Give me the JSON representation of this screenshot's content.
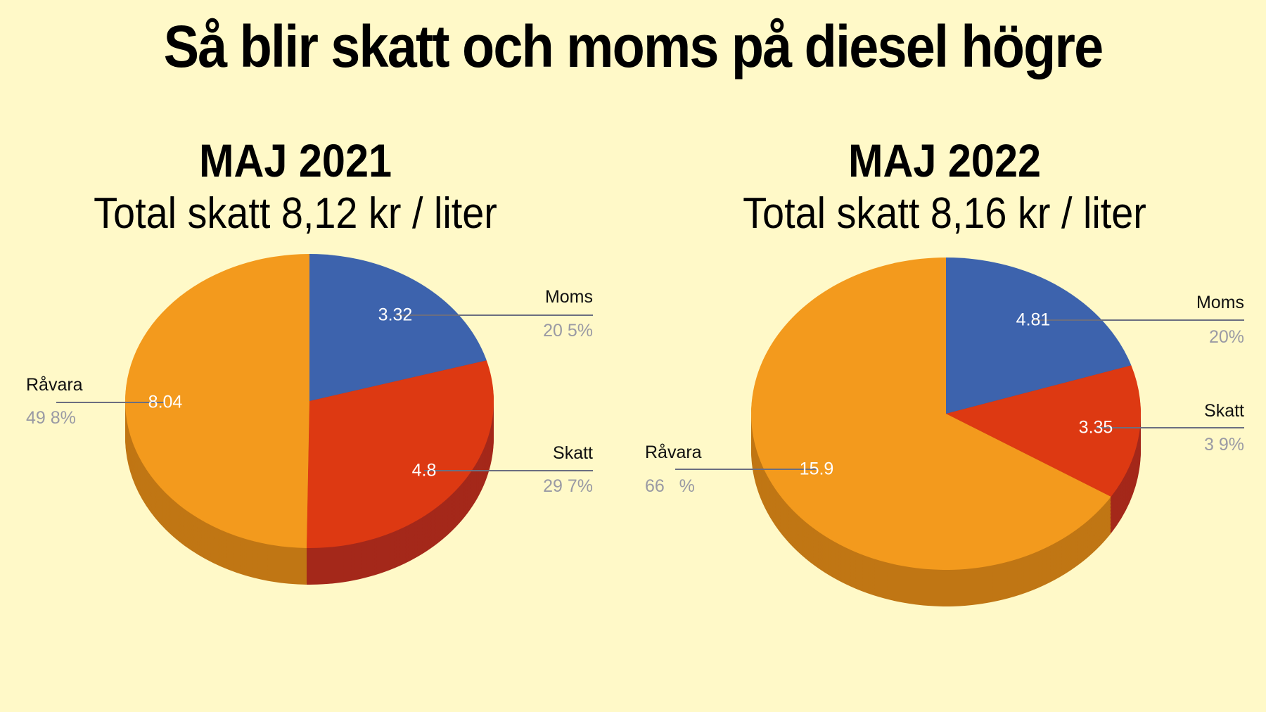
{
  "title": "Så blir skatt och moms på diesel högre",
  "colors": {
    "background": "#fff9c8",
    "Moms": "#3d63ad",
    "Skatt": "#dd3912",
    "Råvara": "#f39a1d",
    "Moms_side": "#2c4a85",
    "Skatt_side": "#a4281a",
    "Råvara_side": "#c07614"
  },
  "chart_data": [
    {
      "type": "pie",
      "style": "3d",
      "title": "MAJ 2021",
      "subtitle": "Total skatt 8,12 kr / liter",
      "categories": [
        "Moms",
        "Skatt",
        "Råvara"
      ],
      "values": [
        3.32,
        4.8,
        8.04
      ],
      "value_labels": [
        "3.32",
        "4.8",
        "8.04"
      ],
      "percent_labels": [
        "20 5%",
        "29 7%",
        "49 8%"
      ]
    },
    {
      "type": "pie",
      "style": "3d",
      "title": "MAJ 2022",
      "subtitle": "Total skatt 8,16 kr / liter",
      "categories": [
        "Moms",
        "Skatt",
        "Råvara"
      ],
      "values": [
        4.81,
        3.35,
        15.9
      ],
      "value_labels": [
        "4.81",
        "3.35",
        "15.9"
      ],
      "percent_labels": [
        "20%",
        "3 9%",
        "66   %"
      ]
    }
  ]
}
